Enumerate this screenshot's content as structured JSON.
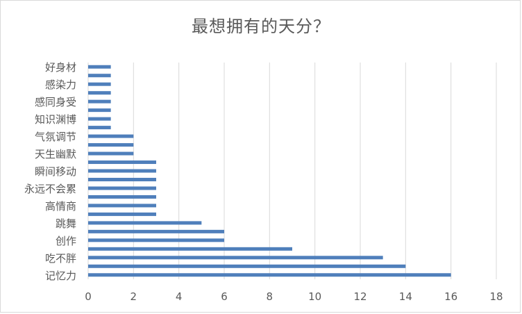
{
  "chart_data": {
    "type": "bar",
    "orientation": "horizontal",
    "title": "最想拥有的天分？",
    "xlabel": "",
    "ylabel": "",
    "xlim": [
      0,
      18
    ],
    "x_ticks": [
      0,
      2,
      4,
      6,
      8,
      10,
      12,
      14,
      16,
      18
    ],
    "grid": "vertical",
    "legend": "none",
    "bar_color": "#4f7fbb",
    "grid_color": "#d9d9d9",
    "text_color": "#595959",
    "categories": [
      "记忆力",
      "",
      "吃不胖",
      "",
      "创作",
      "",
      "跳舞",
      "",
      "高情商",
      "",
      "永远不会累",
      "",
      "瞬间移动",
      "",
      "天生幽默",
      "",
      "气氛调节",
      "",
      "知识渊博",
      "",
      "感同身受",
      "",
      "感染力",
      "",
      "好身材"
    ],
    "values": [
      16,
      14,
      13,
      9,
      6,
      6,
      5,
      3,
      3,
      3,
      3,
      3,
      3,
      3,
      2,
      2,
      2,
      1,
      1,
      1,
      1,
      1,
      1,
      1,
      1
    ]
  }
}
